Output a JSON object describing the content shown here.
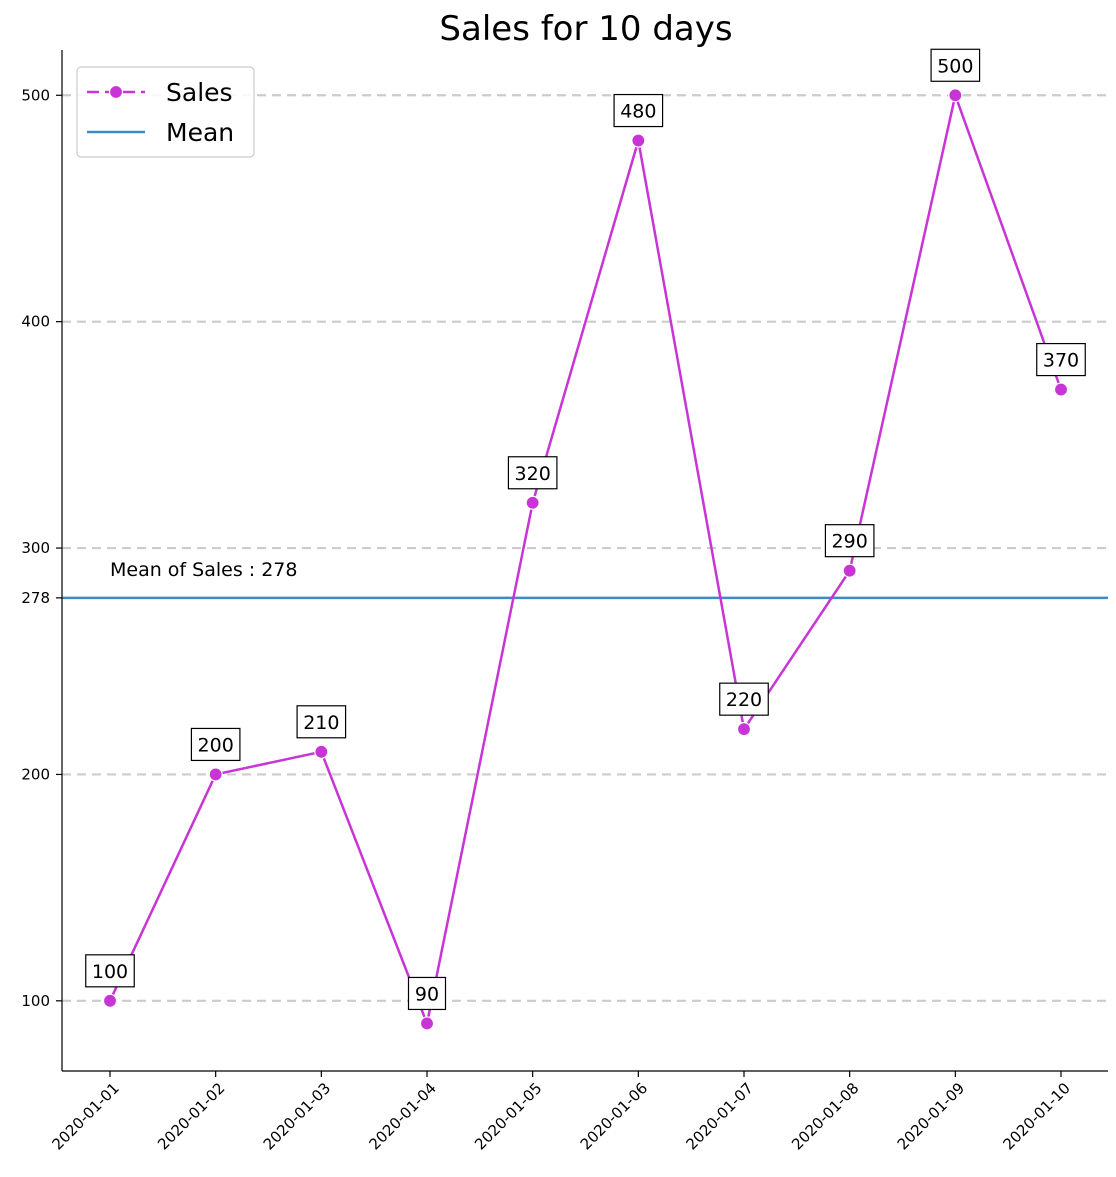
{
  "chart_data": {
    "type": "line",
    "title": "Sales for 10 days",
    "xlabel": "",
    "ylabel": "",
    "categories": [
      "2020-01-01",
      "2020-01-02",
      "2020-01-03",
      "2020-01-04",
      "2020-01-05",
      "2020-01-06",
      "2020-01-07",
      "2020-01-08",
      "2020-01-09",
      "2020-01-10"
    ],
    "series": [
      {
        "name": "Sales",
        "values": [
          100,
          200,
          210,
          90,
          320,
          480,
          220,
          290,
          500,
          370
        ],
        "color": "#c934d6"
      }
    ],
    "mean": {
      "name": "Mean",
      "value": 278,
      "label": "Mean of Sales : 278",
      "color": "#3f8ac4"
    },
    "yticks": [
      100,
      200,
      278,
      300,
      400,
      500
    ],
    "gridlines_at": [
      100,
      200,
      300,
      400,
      500
    ],
    "ylim": [
      69,
      520
    ],
    "grid": "horizontal dashed",
    "legend_position": "top-left"
  }
}
